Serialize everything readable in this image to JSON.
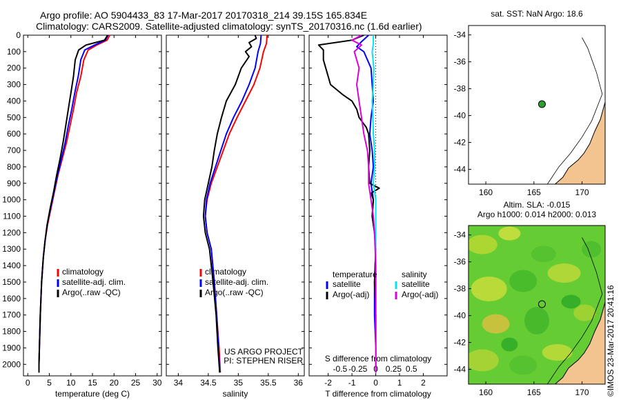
{
  "title_line1": "Argo profile: AO 5904433_83 17-Mar-2017 20170318_214 39.15S 165.834E",
  "title_line2": "Climatology: CARS2009. Satellite-adjusted climatology: synTS_20170316.nc (1.6d earlier)",
  "side_label": "©IMOS 23-Mar-2017 20:41:16",
  "colors": {
    "climatology": "#ff0000",
    "satellite": "#0000ff",
    "argo": "#000000",
    "temp_sat_diff": "#0000ff",
    "temp_argo_diff": "#000000",
    "sal_sat_diff": "#00e5ee",
    "sal_argo_diff": "#dd00dd",
    "land": "#f4c490",
    "float_marker": "#2e9e2e"
  },
  "chart_data": [
    {
      "id": "temperature",
      "type": "line",
      "xlabel": "temperature (deg C)",
      "ylabel": "",
      "xlim": [
        -1,
        31
      ],
      "ylim": [
        2070,
        0
      ],
      "xticks": [
        0,
        5,
        10,
        15,
        20,
        25,
        30
      ],
      "yticks": [
        0,
        100,
        200,
        300,
        400,
        500,
        600,
        700,
        800,
        900,
        1000,
        1100,
        1200,
        1300,
        1400,
        1500,
        1600,
        1700,
        1800,
        1900,
        2000
      ],
      "legend": {
        "entries": [
          "climatology",
          "satellite-adj. clim.",
          "Argo(..raw -QC)"
        ],
        "position": "lower-middle"
      },
      "series": [
        {
          "name": "climatology",
          "color_key": "climatology",
          "points": [
            [
              19.0,
              0
            ],
            [
              18.4,
              30
            ],
            [
              16.0,
              60
            ],
            [
              14.0,
              90
            ],
            [
              13.0,
              150
            ],
            [
              12.3,
              250
            ],
            [
              11.3,
              350
            ],
            [
              10.6,
              450
            ],
            [
              9.8,
              550
            ],
            [
              9.0,
              650
            ],
            [
              8.0,
              750
            ],
            [
              7.0,
              850
            ],
            [
              6.2,
              950
            ],
            [
              5.4,
              1050
            ],
            [
              4.6,
              1150
            ],
            [
              4.0,
              1250
            ],
            [
              3.6,
              1350
            ],
            [
              3.2,
              1500
            ],
            [
              2.9,
              1700
            ],
            [
              2.7,
              1900
            ],
            [
              2.6,
              2000
            ],
            [
              2.6,
              2050
            ]
          ]
        },
        {
          "name": "satellite-adj. clim.",
          "color_key": "satellite",
          "points": [
            [
              18.6,
              0
            ],
            [
              18.0,
              30
            ],
            [
              15.5,
              60
            ],
            [
              13.2,
              90
            ],
            [
              12.3,
              150
            ],
            [
              11.7,
              250
            ],
            [
              10.9,
              350
            ],
            [
              10.2,
              450
            ],
            [
              9.4,
              550
            ],
            [
              8.7,
              650
            ],
            [
              7.8,
              750
            ],
            [
              6.9,
              850
            ],
            [
              6.1,
              950
            ],
            [
              5.3,
              1050
            ],
            [
              4.5,
              1150
            ],
            [
              4.0,
              1250
            ],
            [
              3.6,
              1350
            ],
            [
              3.2,
              1500
            ],
            [
              2.9,
              1700
            ],
            [
              2.7,
              1900
            ],
            [
              2.6,
              2000
            ],
            [
              2.6,
              2050
            ]
          ]
        },
        {
          "name": "Argo(..raw -QC)",
          "color_key": "argo",
          "points": [
            [
              18.5,
              0
            ],
            [
              17.8,
              30
            ],
            [
              13.5,
              60
            ],
            [
              11.8,
              90
            ],
            [
              11.0,
              150
            ],
            [
              10.6,
              250
            ],
            [
              10.0,
              350
            ],
            [
              9.4,
              450
            ],
            [
              8.8,
              550
            ],
            [
              8.2,
              650
            ],
            [
              7.5,
              750
            ],
            [
              6.7,
              850
            ],
            [
              6.0,
              950
            ],
            [
              5.2,
              1050
            ],
            [
              4.5,
              1150
            ],
            [
              4.0,
              1250
            ],
            [
              3.6,
              1350
            ],
            [
              3.2,
              1500
            ],
            [
              2.9,
              1700
            ],
            [
              2.7,
              1900
            ],
            [
              2.6,
              2000
            ],
            [
              2.6,
              2050
            ]
          ]
        }
      ]
    },
    {
      "id": "salinity",
      "type": "line",
      "xlabel": "salinity",
      "ylabel": "",
      "xlim": [
        33.8,
        36.1
      ],
      "ylim": [
        2070,
        0
      ],
      "xticks": [
        34,
        34.5,
        35,
        35.5,
        36
      ],
      "yticks": [
        0,
        100,
        200,
        300,
        400,
        500,
        600,
        700,
        800,
        900,
        1000,
        1100,
        1200,
        1300,
        1400,
        1500,
        1600,
        1700,
        1800,
        1900,
        2000
      ],
      "legend": {
        "entries": [
          "climatology",
          "satellite-adj. clim.",
          "Argo(..raw -QC)"
        ],
        "position": "lower-middle"
      },
      "annotation": [
        "US ARGO PROJECT",
        "PI: STEPHEN RISER"
      ],
      "series": [
        {
          "name": "climatology",
          "color_key": "climatology",
          "points": [
            [
              35.48,
              0
            ],
            [
              35.47,
              50
            ],
            [
              35.42,
              100
            ],
            [
              35.36,
              200
            ],
            [
              35.26,
              300
            ],
            [
              35.12,
              400
            ],
            [
              34.98,
              500
            ],
            [
              34.85,
              600
            ],
            [
              34.75,
              700
            ],
            [
              34.65,
              800
            ],
            [
              34.55,
              900
            ],
            [
              34.48,
              1000
            ],
            [
              34.45,
              1100
            ],
            [
              34.48,
              1200
            ],
            [
              34.55,
              1300
            ],
            [
              34.6,
              1500
            ],
            [
              34.64,
              1700
            ],
            [
              34.68,
              1900
            ],
            [
              34.7,
              2050
            ]
          ]
        },
        {
          "name": "satellite-adj. clim.",
          "color_key": "satellite",
          "points": [
            [
              35.38,
              0
            ],
            [
              35.37,
              50
            ],
            [
              35.33,
              100
            ],
            [
              35.28,
              200
            ],
            [
              35.18,
              300
            ],
            [
              35.06,
              400
            ],
            [
              34.92,
              500
            ],
            [
              34.8,
              600
            ],
            [
              34.71,
              700
            ],
            [
              34.62,
              800
            ],
            [
              34.53,
              900
            ],
            [
              34.47,
              1000
            ],
            [
              34.45,
              1100
            ],
            [
              34.48,
              1200
            ],
            [
              34.55,
              1300
            ],
            [
              34.6,
              1500
            ],
            [
              34.64,
              1700
            ],
            [
              34.67,
              1900
            ],
            [
              34.69,
              2050
            ]
          ]
        },
        {
          "name": "Argo(..raw -QC)",
          "color_key": "argo",
          "points": [
            [
              35.28,
              0
            ],
            [
              35.3,
              20
            ],
            [
              35.18,
              45
            ],
            [
              35.22,
              70
            ],
            [
              35.12,
              100
            ],
            [
              35.18,
              130
            ],
            [
              35.05,
              200
            ],
            [
              34.95,
              300
            ],
            [
              34.8,
              400
            ],
            [
              34.72,
              500
            ],
            [
              34.65,
              600
            ],
            [
              34.6,
              700
            ],
            [
              34.56,
              800
            ],
            [
              34.5,
              900
            ],
            [
              34.44,
              1000
            ],
            [
              34.42,
              1100
            ],
            [
              34.45,
              1200
            ],
            [
              34.52,
              1300
            ],
            [
              34.58,
              1500
            ],
            [
              34.63,
              1700
            ],
            [
              34.66,
              1900
            ],
            [
              34.69,
              2050
            ]
          ]
        }
      ]
    },
    {
      "id": "difference",
      "type": "line",
      "xlabel": "T difference from climatology",
      "x2label": "S difference from climatology",
      "xlim": [
        -2.8,
        3.0
      ],
      "ylim": [
        2070,
        0
      ],
      "xticks": [
        -2,
        -1,
        0,
        1,
        2
      ],
      "x2ticks": [
        "-0.5",
        "-0.25",
        "0",
        "0.25",
        "0.5"
      ],
      "yticks": [
        0,
        100,
        200,
        300,
        400,
        500,
        600,
        700,
        800,
        900,
        1000,
        1100,
        1200,
        1300,
        1400,
        1500,
        1600,
        1700,
        1800,
        1900,
        2000
      ],
      "legend": {
        "headers": [
          "temperature",
          "salinity"
        ],
        "entries": [
          "satellite",
          "Argo(-adj)",
          "satellite",
          "Argo(-adj)"
        ],
        "position": "lower"
      },
      "series": [
        {
          "name": "satellite",
          "group": "temperature",
          "color_key": "temp_sat_diff",
          "points": [
            [
              -0.3,
              0
            ],
            [
              -0.6,
              40
            ],
            [
              -0.8,
              70
            ],
            [
              -0.5,
              100
            ],
            [
              -0.2,
              200
            ],
            [
              -0.15,
              300
            ],
            [
              -0.1,
              400
            ],
            [
              -0.2,
              500
            ],
            [
              -0.25,
              600
            ],
            [
              -0.15,
              700
            ],
            [
              -0.1,
              800
            ],
            [
              -0.2,
              900
            ],
            [
              -0.1,
              1000
            ],
            [
              -0.15,
              1100
            ],
            [
              -0.05,
              1200
            ],
            [
              0.0,
              1300
            ],
            [
              -0.05,
              1500
            ],
            [
              -0.05,
              1700
            ],
            [
              0.0,
              1900
            ],
            [
              0.0,
              2050
            ]
          ]
        },
        {
          "name": "Argo(-adj)",
          "group": "temperature",
          "color_key": "temp_argo_diff",
          "points": [
            [
              -0.5,
              0
            ],
            [
              -1.0,
              30
            ],
            [
              -2.4,
              60
            ],
            [
              -2.2,
              90
            ],
            [
              -2.2,
              150
            ],
            [
              -2.0,
              250
            ],
            [
              -1.9,
              300
            ],
            [
              -1.4,
              360
            ],
            [
              -1.0,
              400
            ],
            [
              -0.8,
              450
            ],
            [
              -0.7,
              500
            ],
            [
              -0.4,
              560
            ],
            [
              -0.3,
              600
            ],
            [
              -0.25,
              700
            ],
            [
              -0.3,
              800
            ],
            [
              -0.25,
              900
            ],
            [
              0.15,
              930
            ],
            [
              -0.2,
              960
            ],
            [
              -0.1,
              1000
            ],
            [
              -0.15,
              1100
            ],
            [
              -0.05,
              1200
            ],
            [
              0.0,
              1300
            ],
            [
              -0.05,
              1500
            ],
            [
              0.0,
              1700
            ],
            [
              0.0,
              1900
            ],
            [
              0.0,
              2050
            ]
          ]
        },
        {
          "name": "satellite",
          "group": "salinity",
          "color_key": "sal_sat_diff",
          "points": [
            [
              -0.1,
              0
            ],
            [
              -0.1,
              50
            ],
            [
              -0.15,
              100
            ],
            [
              -0.08,
              200
            ],
            [
              -0.1,
              300
            ],
            [
              -0.15,
              400
            ],
            [
              -0.12,
              500
            ],
            [
              -0.1,
              600
            ],
            [
              -0.05,
              700
            ],
            [
              -0.05,
              800
            ],
            [
              -0.1,
              900
            ],
            [
              0.0,
              1000
            ],
            [
              0.0,
              1200
            ],
            [
              0.0,
              1400
            ],
            [
              0.0,
              1600
            ],
            [
              0.0,
              1800
            ],
            [
              0.0,
              2050
            ]
          ]
        },
        {
          "name": "Argo(-adj)",
          "group": "salinity",
          "color_key": "sal_argo_diff",
          "points": [
            [
              -0.6,
              0
            ],
            [
              -1.0,
              30
            ],
            [
              -0.6,
              60
            ],
            [
              -0.9,
              100
            ],
            [
              -0.7,
              200
            ],
            [
              -0.8,
              300
            ],
            [
              -0.7,
              400
            ],
            [
              -0.6,
              500
            ],
            [
              -0.5,
              600
            ],
            [
              -0.35,
              700
            ],
            [
              -0.3,
              800
            ],
            [
              -0.3,
              900
            ],
            [
              -0.2,
              1000
            ],
            [
              -0.1,
              1100
            ],
            [
              -0.05,
              1200
            ],
            [
              0.0,
              1400
            ],
            [
              0.0,
              1700
            ],
            [
              0.0,
              2050
            ]
          ]
        }
      ]
    }
  ],
  "maps": [
    {
      "id": "sst-map",
      "title": "sat. SST: NaN Argo: 18.6",
      "xlim": [
        158.2,
        172.4
      ],
      "ylim": [
        -45.1,
        -33.3
      ],
      "xticks": [
        160,
        165,
        170
      ],
      "yticks": [
        -34,
        -36,
        -38,
        -40,
        -42,
        -44
      ],
      "float": {
        "lon": 165.834,
        "lat": -39.15
      }
    },
    {
      "id": "sla-map",
      "title_line1": "Altim. SLA: -0.015",
      "title_line2": "Argo h1000: 0.014 h2000: 0.013",
      "xlim": [
        158.2,
        172.4
      ],
      "ylim": [
        -45.1,
        -33.3
      ],
      "xticks": [
        160,
        165,
        170
      ],
      "yticks": [
        -34,
        -36,
        -38,
        -40,
        -42,
        -44
      ],
      "float": {
        "lon": 165.834,
        "lat": -39.15
      }
    }
  ]
}
